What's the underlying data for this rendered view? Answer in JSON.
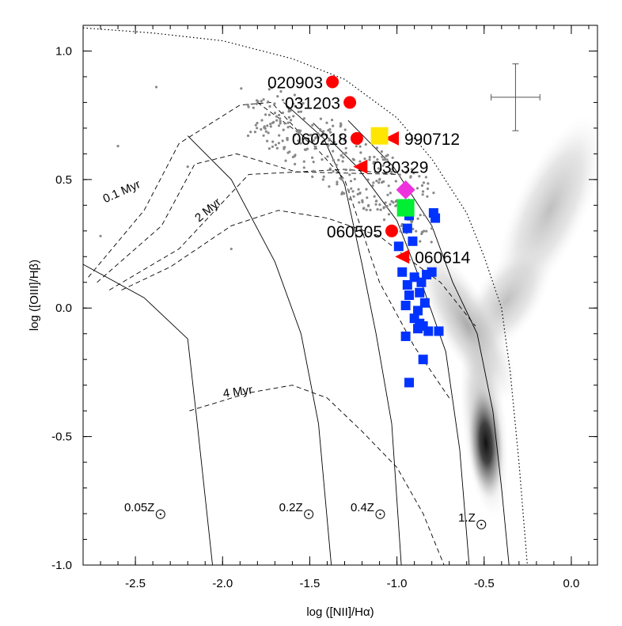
{
  "chart_data": {
    "type": "scatter",
    "xlabel": "log ([NII]/Hα)",
    "ylabel": "log ([OIII]/Hβ)",
    "xlim": [
      -2.8,
      0.15
    ],
    "ylim": [
      -1.0,
      1.1
    ],
    "xticks": [
      -2.5,
      -2.0,
      -1.5,
      -1.0,
      -0.5,
      0.0
    ],
    "xtick_labels": [
      "-2.5",
      "-2.0",
      "-1.5",
      "-1.0",
      "-0.5",
      "0.0"
    ],
    "yticks": [
      -1.0,
      -0.5,
      0.0,
      0.5,
      1.0
    ],
    "ytick_labels": [
      "-1.0",
      "-0.5",
      "0.0",
      "0.5",
      "1.0"
    ],
    "grid": false,
    "colors": {
      "grb_circle": "#ff0000",
      "grb_triangle": "#ff0000",
      "blue_squares": "#0033ff",
      "yellow_square": "#ffe600",
      "green_square": "#00ee33",
      "magenta_diamond": "#ee33dd",
      "background_points": "#888888"
    },
    "series": [
      {
        "marker": "circle",
        "color": "#ff0000",
        "points": [
          {
            "label": "020903",
            "x": -1.37,
            "y": 0.88
          },
          {
            "label": "031203",
            "x": -1.27,
            "y": 0.8
          },
          {
            "label": "060218",
            "x": -1.23,
            "y": 0.66
          },
          {
            "label": "060505",
            "x": -1.03,
            "y": 0.3
          }
        ]
      },
      {
        "marker": "triangle-left",
        "color": "#ff0000",
        "points": [
          {
            "label": "990712",
            "x": -1.03,
            "y": 0.66
          },
          {
            "label": "030329",
            "x": -1.21,
            "y": 0.55
          },
          {
            "label": "060614",
            "x": -0.97,
            "y": 0.2
          }
        ]
      },
      {
        "marker": "square",
        "color": "#0033ff",
        "points": [
          {
            "x": -0.93,
            "y": 0.36
          },
          {
            "x": -0.79,
            "y": 0.37
          },
          {
            "x": -0.78,
            "y": 0.35
          },
          {
            "x": -0.94,
            "y": 0.31
          },
          {
            "x": -0.91,
            "y": 0.26
          },
          {
            "x": -0.99,
            "y": 0.24
          },
          {
            "x": -0.97,
            "y": 0.14
          },
          {
            "x": -0.9,
            "y": 0.12
          },
          {
            "x": -0.83,
            "y": 0.13
          },
          {
            "x": -0.86,
            "y": 0.1
          },
          {
            "x": -0.8,
            "y": 0.14
          },
          {
            "x": -0.94,
            "y": 0.09
          },
          {
            "x": -0.87,
            "y": 0.06
          },
          {
            "x": -0.93,
            "y": 0.05
          },
          {
            "x": -0.95,
            "y": 0.01
          },
          {
            "x": -0.88,
            "y": -0.01
          },
          {
            "x": -0.84,
            "y": 0.02
          },
          {
            "x": -0.9,
            "y": -0.04
          },
          {
            "x": -0.87,
            "y": -0.06
          },
          {
            "x": -0.85,
            "y": -0.07
          },
          {
            "x": -0.88,
            "y": -0.08
          },
          {
            "x": -0.82,
            "y": -0.09
          },
          {
            "x": -0.76,
            "y": -0.09
          },
          {
            "x": -0.95,
            "y": -0.11
          },
          {
            "x": -0.85,
            "y": -0.2
          },
          {
            "x": -0.93,
            "y": -0.29
          }
        ]
      },
      {
        "marker": "square",
        "color": "#ffe600",
        "points": [
          {
            "x": -1.1,
            "y": 0.67
          }
        ]
      },
      {
        "marker": "square",
        "color": "#00ee33",
        "points": [
          {
            "x": -0.95,
            "y": 0.39
          }
        ]
      },
      {
        "marker": "diamond",
        "color": "#ee33dd",
        "points": [
          {
            "x": -0.95,
            "y": 0.46
          }
        ]
      }
    ],
    "error_bar": {
      "x": -0.32,
      "y": 0.82,
      "dx": 0.14,
      "dy": 0.13
    },
    "annotations": [
      {
        "text": "0.1 Myr",
        "x": -2.57,
        "y": 0.44,
        "angle": -24
      },
      {
        "text": "2 Myr",
        "x": -2.07,
        "y": 0.37,
        "angle": -40
      },
      {
        "text": "4 Myr",
        "x": -1.91,
        "y": -0.34,
        "angle": -8
      }
    ],
    "metallicity_labels": [
      {
        "base": "0.05Z",
        "x": -2.39,
        "y": -0.79
      },
      {
        "base": "0.2Z",
        "x": -1.54,
        "y": -0.79
      },
      {
        "base": "0.4Z",
        "x": -1.13,
        "y": -0.79
      },
      {
        "base": "1.Z",
        "x": -0.55,
        "y": -0.83
      }
    ],
    "model_grid": {
      "metallicity_lines": [
        [
          [
            -2.8,
            0.17
          ],
          [
            -2.45,
            0.04
          ],
          [
            -2.2,
            -0.12
          ],
          [
            -2.15,
            -0.42
          ],
          [
            -2.05,
            -1.05
          ]
        ],
        [
          [
            -2.2,
            0.67
          ],
          [
            -1.95,
            0.5
          ],
          [
            -1.7,
            0.18
          ],
          [
            -1.55,
            -0.1
          ],
          [
            -1.45,
            -0.45
          ],
          [
            -1.37,
            -1.05
          ]
        ],
        [
          [
            -1.65,
            0.8
          ],
          [
            -1.42,
            0.66
          ],
          [
            -1.3,
            0.48
          ],
          [
            -1.2,
            0.17
          ],
          [
            -1.12,
            -0.1
          ],
          [
            -1.03,
            -0.45
          ],
          [
            -0.97,
            -1.05
          ]
        ],
        [
          [
            -1.48,
            0.72
          ],
          [
            -1.23,
            0.55
          ],
          [
            -1.0,
            0.34
          ],
          [
            -0.85,
            0.08
          ],
          [
            -0.72,
            -0.17
          ],
          [
            -0.64,
            -0.55
          ],
          [
            -0.58,
            -1.05
          ]
        ],
        [
          [
            -1.28,
            0.73
          ],
          [
            -1.02,
            0.55
          ],
          [
            -0.8,
            0.32
          ],
          [
            -0.68,
            0.1
          ],
          [
            -0.54,
            -0.1
          ],
          [
            -0.45,
            -0.4
          ],
          [
            -0.4,
            -0.7
          ],
          [
            -0.35,
            -1.05
          ]
        ]
      ],
      "age_lines": [
        [
          [
            -2.77,
            0.12
          ],
          [
            -2.45,
            0.38
          ],
          [
            -2.25,
            0.64
          ],
          [
            -1.9,
            0.79
          ],
          [
            -1.72,
            0.8
          ],
          [
            -1.5,
            0.64
          ]
        ],
        [
          [
            -2.72,
            0.1
          ],
          [
            -2.35,
            0.32
          ],
          [
            -2.16,
            0.56
          ],
          [
            -1.92,
            0.6
          ],
          [
            -1.58,
            0.53
          ],
          [
            -1.0,
            0.52
          ]
        ],
        [
          [
            -2.65,
            0.07
          ],
          [
            -2.25,
            0.23
          ],
          [
            -1.85,
            0.52
          ],
          [
            -1.55,
            0.53
          ],
          [
            -1.3,
            0.54
          ],
          [
            -1.0,
            0.52
          ]
        ],
        [
          [
            -2.58,
            0.07
          ],
          [
            -2.3,
            0.16
          ],
          [
            -1.95,
            0.32
          ],
          [
            -1.68,
            0.38
          ],
          [
            -1.4,
            0.35
          ],
          [
            -1.1,
            0.28
          ],
          [
            -0.95,
            0.2
          ],
          [
            -0.75,
            0.1
          ],
          [
            -0.55,
            -0.07
          ]
        ],
        [
          [
            -2.19,
            -0.4
          ],
          [
            -1.85,
            -0.33
          ],
          [
            -1.6,
            -0.3
          ],
          [
            -1.4,
            -0.35
          ],
          [
            -1.2,
            -0.48
          ],
          [
            -1.0,
            -0.62
          ],
          [
            -0.85,
            -0.8
          ],
          [
            -0.7,
            -1.05
          ]
        ],
        [
          [
            -1.8,
            0.8
          ],
          [
            -1.5,
            0.65
          ],
          [
            -1.3,
            0.5
          ],
          [
            -1.1,
            0.1
          ],
          [
            -0.9,
            -0.15
          ],
          [
            -0.7,
            -0.35
          ]
        ]
      ],
      "envelope": [
        [
          -2.8,
          1.09
        ],
        [
          -2.4,
          1.07
        ],
        [
          -2.0,
          1.04
        ],
        [
          -1.6,
          0.97
        ],
        [
          -1.3,
          0.89
        ],
        [
          -1.0,
          0.74
        ],
        [
          -0.8,
          0.58
        ],
        [
          -0.6,
          0.37
        ],
        [
          -0.5,
          0.2
        ],
        [
          -0.4,
          0.0
        ],
        [
          -0.35,
          -0.25
        ],
        [
          -0.3,
          -0.6
        ],
        [
          -0.25,
          -1.02
        ]
      ]
    }
  }
}
